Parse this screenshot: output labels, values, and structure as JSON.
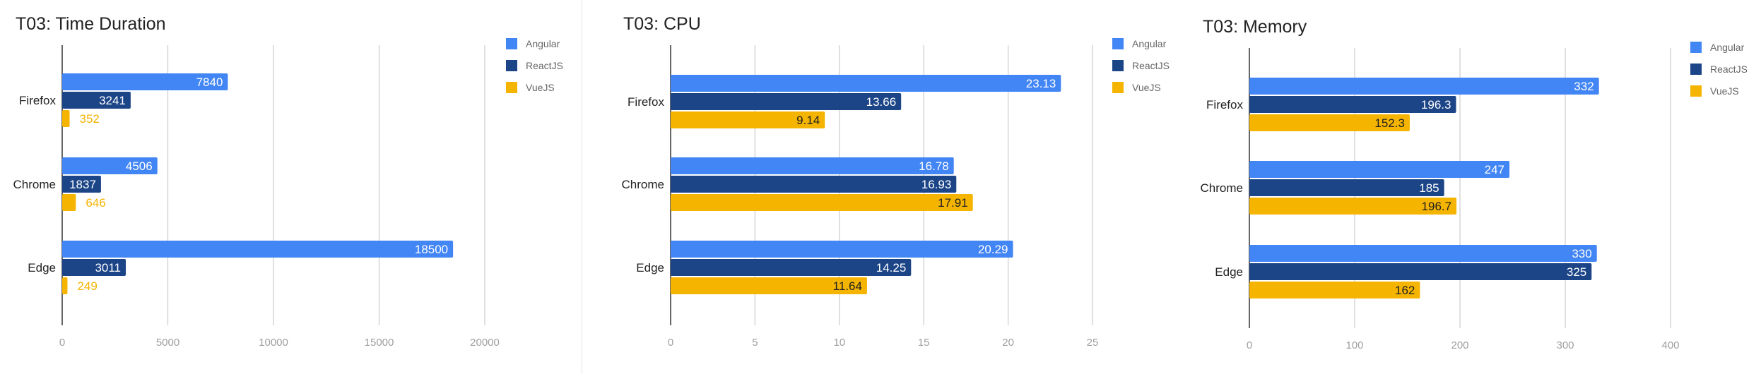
{
  "colors": {
    "Angular": "#4285f4",
    "ReactJS": "#1c4587",
    "VueJS": "#f4b400",
    "grid": "#cccccc",
    "axis": "#333333"
  },
  "chart_data": [
    {
      "type": "bar",
      "orientation": "horizontal",
      "title": "T03: Time Duration",
      "categories": [
        "Firefox",
        "Chrome",
        "Edge"
      ],
      "series": [
        {
          "name": "Angular",
          "values": [
            7840,
            4506,
            18500
          ]
        },
        {
          "name": "ReactJS",
          "values": [
            3241,
            1837,
            3011
          ]
        },
        {
          "name": "VueJS",
          "values": [
            352,
            646,
            249
          ]
        }
      ],
      "xlim": [
        0,
        20000
      ],
      "xticks": [
        0,
        5000,
        10000,
        15000,
        20000
      ],
      "grid": true,
      "legend": "top-right"
    },
    {
      "type": "bar",
      "orientation": "horizontal",
      "title": "T03: CPU",
      "categories": [
        "Firefox",
        "Chrome",
        "Edge"
      ],
      "series": [
        {
          "name": "Angular",
          "values": [
            23.13,
            16.78,
            20.29
          ]
        },
        {
          "name": "ReactJS",
          "values": [
            13.66,
            16.93,
            14.25
          ]
        },
        {
          "name": "VueJS",
          "values": [
            9.14,
            17.91,
            11.64
          ]
        }
      ],
      "xlim": [
        0,
        25
      ],
      "xticks": [
        0,
        5,
        10,
        15,
        20,
        25
      ],
      "grid": true,
      "legend": "top-right"
    },
    {
      "type": "bar",
      "orientation": "horizontal",
      "title": "T03: Memory",
      "categories": [
        "Firefox",
        "Chrome",
        "Edge"
      ],
      "series": [
        {
          "name": "Angular",
          "values": [
            332,
            247,
            330
          ]
        },
        {
          "name": "ReactJS",
          "values": [
            196.3,
            185,
            325
          ]
        },
        {
          "name": "VueJS",
          "values": [
            152.3,
            196.7,
            162
          ]
        }
      ],
      "xlim": [
        0,
        400
      ],
      "xticks": [
        0,
        100,
        200,
        300,
        400
      ],
      "grid": true,
      "legend": "top-right"
    }
  ]
}
